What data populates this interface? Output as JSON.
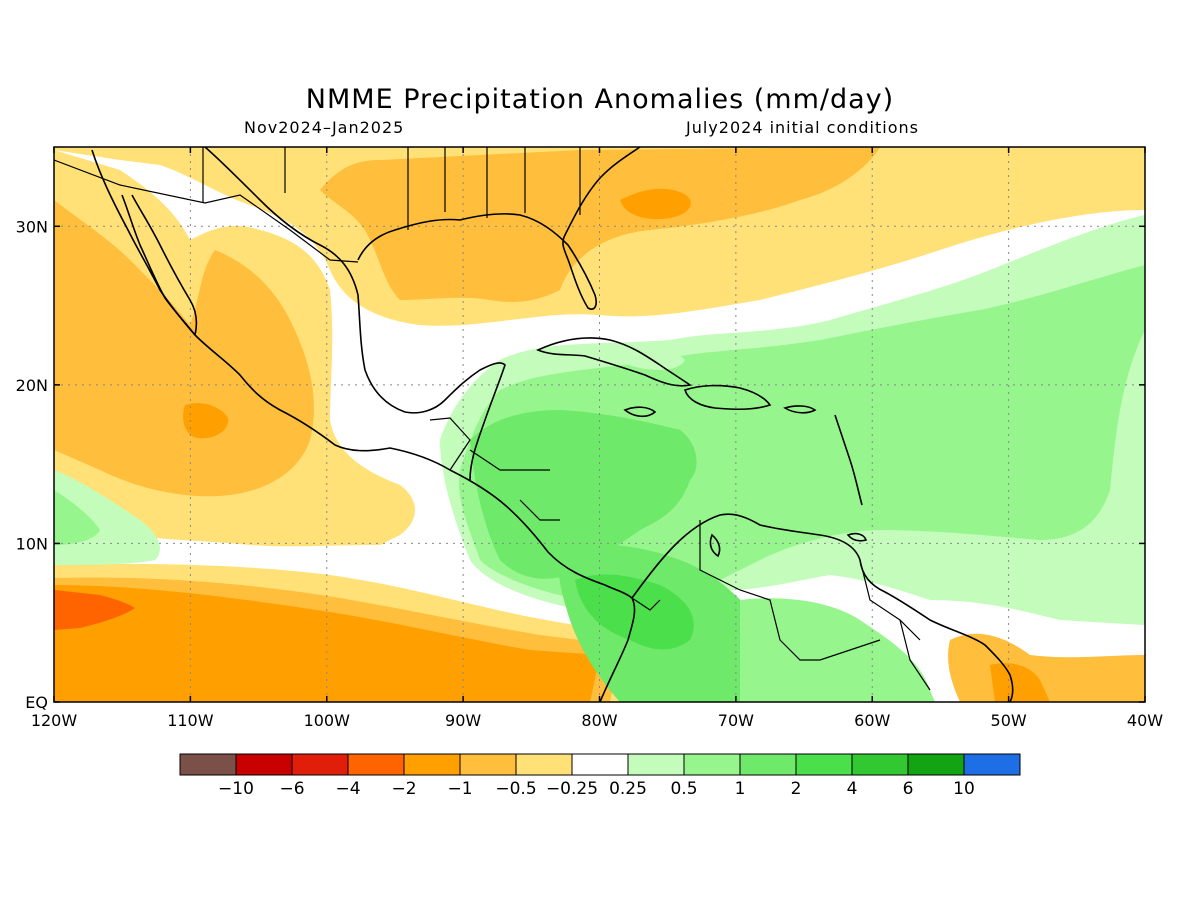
{
  "title": "NMME Precipitation Anomalies (mm/day)",
  "subtitle_left": "Nov2024–Jan2025",
  "subtitle_right": "July2024 initial conditions",
  "map": {
    "lon_range": [
      -120,
      -40
    ],
    "lat_range": [
      0,
      35
    ],
    "x_ticks": [
      {
        "lon": -120,
        "label": "120W"
      },
      {
        "lon": -110,
        "label": "110W"
      },
      {
        "lon": -100,
        "label": "100W"
      },
      {
        "lon": -90,
        "label": "90W"
      },
      {
        "lon": -80,
        "label": "80W"
      },
      {
        "lon": -70,
        "label": "70W"
      },
      {
        "lon": -60,
        "label": "60W"
      },
      {
        "lon": -50,
        "label": "50W"
      },
      {
        "lon": -40,
        "label": "40W"
      }
    ],
    "y_ticks": [
      {
        "lat": 0,
        "label": "EQ"
      },
      {
        "lat": 10,
        "label": "10N"
      },
      {
        "lat": 20,
        "label": "20N"
      },
      {
        "lat": 30,
        "label": "30N"
      }
    ],
    "gridlines": "dotted"
  },
  "colorbar": {
    "colors": [
      "#7a5048",
      "#c80000",
      "#e01e0a",
      "#ff6400",
      "#ffa000",
      "#ffbe3c",
      "#ffe178",
      "#ffffff",
      "#c3fcbb",
      "#96f58c",
      "#6ee96a",
      "#4be04b",
      "#32c832",
      "#13a413",
      "#1e6ee6"
    ],
    "labels": [
      "−10",
      "−6",
      "−4",
      "−2",
      "−1",
      "−0.5",
      "−0.25",
      "0.25",
      "0.5",
      "1",
      "2",
      "4",
      "6",
      "10"
    ]
  },
  "legend_colors": {
    "dry_strong": "#ff6400",
    "dry": "#ffa000",
    "dry_moderate": "#ffbe3c",
    "dry_weak": "#ffe178",
    "wet_weak": "#c3fcbb",
    "wet": "#96f58c",
    "wet_moderate": "#6ee96a",
    "wet_strong": "#4be04b"
  }
}
